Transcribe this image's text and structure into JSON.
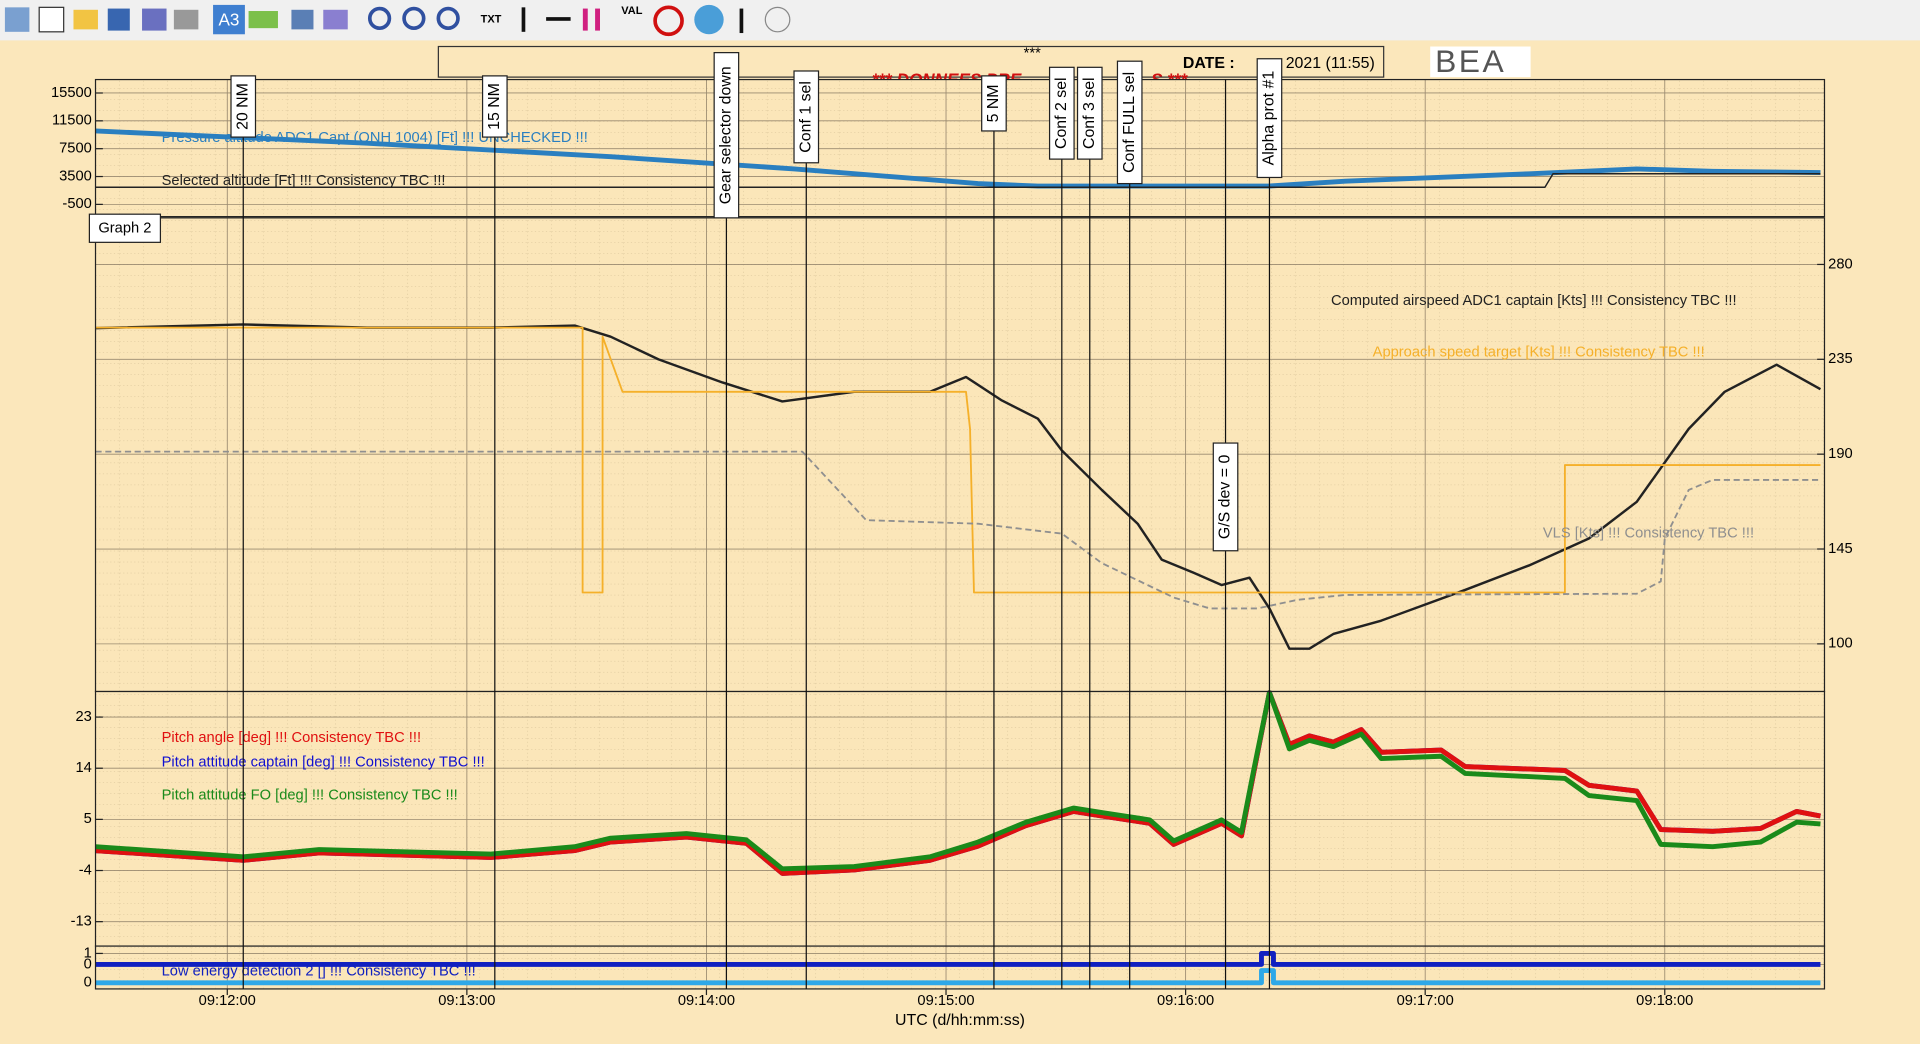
{
  "toolbar": {
    "labels": [
      "A3",
      "TXT",
      "VAL"
    ]
  },
  "header": {
    "stars": "***",
    "date_label": "DATE :",
    "date": "2021 (11:55)",
    "banner_left": "*** DONNEES PRE",
    "banner_right": "S ***",
    "logo": "BEA",
    "graph_label": "Graph 2"
  },
  "chart_data": [
    {
      "type": "line",
      "ylim": [
        -2260,
        17430
      ],
      "yticks": [
        15500,
        11500,
        7500,
        3500,
        -500
      ],
      "grid": true,
      "series": [
        {
          "name": "Pressure altitude ADC1 Capt (QNH 1004) [Ft] !!! UNCHECKED !!!",
          "color": "#2a7fc0",
          "x": [
            33087,
            33155,
            33216,
            33262,
            33308,
            33323,
            33369,
            33381,
            33400,
            33446,
            33473,
            33492,
            33519
          ],
          "values": [
            10050,
            8292,
            6358,
            4600,
            2491,
            2140,
            2140,
            2140,
            2842,
            3897,
            4600,
            4249,
            4073
          ]
        },
        {
          "name": "Selected altitude [Ft] !!! Consistency TBC !!!",
          "color": "#222222",
          "x": [
            33087,
            33450,
            33452,
            33519
          ],
          "values": [
            1964,
            1964,
            3897,
            3897
          ]
        }
      ]
    },
    {
      "type": "line",
      "ylim": [
        77.4,
        302.1
      ],
      "yticks": [
        280,
        235,
        190,
        145,
        100
      ],
      "grid": true,
      "yaxis_side": "right",
      "series": [
        {
          "name": "Computed airspeed ADC1 captain [Kts] !!! Consistency TBC !!!",
          "color": "#222222",
          "x": [
            33087,
            33124,
            33155,
            33186,
            33207,
            33216,
            33228,
            33244,
            33259,
            33277,
            33296,
            33305,
            33314,
            33323,
            33329,
            33339,
            33348,
            33354,
            33362,
            33369,
            33376,
            33381,
            33386,
            33391,
            33397,
            33409,
            33430,
            33446,
            33461,
            33473,
            33486,
            33495,
            33508,
            33519
          ],
          "values": [
            249.8,
            251.5,
            250,
            250,
            251,
            245.7,
            235,
            224,
            215,
            219.6,
            219.6,
            226.6,
            215.5,
            206.8,
            191.7,
            173,
            157,
            140,
            133.7,
            127.9,
            131.4,
            116.8,
            97.7,
            97.7,
            104.7,
            111,
            125.6,
            137.2,
            150,
            167.4,
            202,
            219.6,
            232.4,
            220.8
          ]
        },
        {
          "name": "Approach speed target [Kts] !!! Consistency TBC !!!",
          "color": "#f5b02a",
          "x": [
            33087,
            33209,
            33209,
            33214,
            33214,
            33219,
            33305,
            33306,
            33307,
            33455,
            33455,
            33519
          ],
          "values": [
            250,
            250,
            124.4,
            124.4,
            245.7,
            219.6,
            219.6,
            202,
            124.4,
            124.4,
            184.8,
            184.8
          ]
        },
        {
          "name": "VLS [Kts] !!! Consistency TBC !!!",
          "color": "#8f8f8f",
          "dashed": true,
          "x": [
            33087,
            33264,
            33280,
            33308,
            33329,
            33339,
            33357,
            33366,
            33378,
            33388,
            33400,
            33473,
            33479,
            33480,
            33486,
            33492,
            33519
          ],
          "values": [
            191.2,
            191.2,
            158.7,
            157,
            152.3,
            138.3,
            122,
            116.8,
            116.8,
            120.9,
            123.2,
            123.8,
            129.6,
            150,
            173,
            177.8,
            177.8
          ]
        }
      ]
    },
    {
      "type": "line",
      "ylim": [
        -17.3,
        27.5
      ],
      "yticks": [
        23,
        14,
        5,
        -4,
        -13
      ],
      "grid": true,
      "x": [
        33087,
        33124,
        33143,
        33186,
        33207,
        33216,
        33235,
        33250,
        33259,
        33277,
        33296,
        33308,
        33320,
        33332,
        33339,
        33351,
        33357,
        33369,
        33374,
        33377,
        33381,
        33386,
        33391,
        33397,
        33404,
        33409,
        33424,
        33430,
        33455,
        33461,
        33473,
        33479,
        33492,
        33504,
        33513,
        33519
      ],
      "series": [
        {
          "name": "Pitch attitude captain [deg] !!! Consistency TBC !!!",
          "color": "#1010d0",
          "values": [
            -0.5,
            -2.2,
            -0.9,
            -1.7,
            -0.5,
            1.0,
            1.9,
            0.8,
            -4.5,
            -3.9,
            -2.2,
            0.3,
            3.9,
            6.4,
            5.6,
            4.3,
            0.6,
            4.3,
            2.1,
            13.0,
            27.3,
            18.2,
            19.7,
            18.6,
            20.8,
            16.8,
            17.2,
            14.3,
            13.6,
            11.0,
            10.0,
            3.2,
            2.9,
            3.4,
            6.4,
            5.6
          ]
        },
        {
          "name": "Pitch angle [deg] !!! Consistency TBC !!!",
          "color": "#e01010",
          "values": [
            -0.5,
            -2.2,
            -0.9,
            -1.7,
            -0.5,
            1.0,
            1.9,
            0.8,
            -4.5,
            -3.9,
            -2.2,
            0.3,
            3.9,
            6.4,
            5.6,
            4.3,
            0.6,
            4.3,
            2.1,
            13.0,
            27.3,
            18.2,
            19.7,
            18.6,
            20.8,
            16.8,
            17.2,
            14.3,
            13.6,
            11.0,
            10.0,
            3.2,
            2.9,
            3.4,
            6.4,
            5.6
          ]
        },
        {
          "name": "Pitch attitude FO [deg] !!! Consistency TBC !!!",
          "color": "#1a8a1a",
          "values": [
            0.2,
            -1.6,
            -0.3,
            -1.1,
            0.2,
            1.7,
            2.5,
            1.4,
            -3.7,
            -3.3,
            -1.6,
            1.0,
            4.5,
            7.0,
            6.2,
            4.9,
            1.2,
            4.9,
            2.7,
            13.5,
            27.3,
            17.4,
            18.9,
            17.8,
            20.0,
            15.7,
            16.1,
            13.1,
            12.2,
            9.2,
            8.3,
            0.6,
            0.2,
            1.0,
            4.5,
            4.2
          ]
        }
      ]
    },
    {
      "type": "line",
      "ylim": [
        -2.22,
        1.667
      ],
      "yticks": [
        1,
        0
      ],
      "y2lim": [
        -0.5,
        3
      ],
      "y2ticks": [
        0
      ],
      "grid": true,
      "xlim": [
        33087,
        33520
      ],
      "xticks": [
        {
          "value": 33120,
          "label": "09:12:00"
        },
        {
          "value": 33180,
          "label": "09:13:00"
        },
        {
          "value": 33240,
          "label": "09:14:00"
        },
        {
          "value": 33300,
          "label": "09:15:00"
        },
        {
          "value": 33360,
          "label": "09:16:00"
        },
        {
          "value": 33420,
          "label": "09:17:00"
        },
        {
          "value": 33480,
          "label": "09:18:00"
        }
      ],
      "x_label": "UTC (d/hh:mm:ss)",
      "x": [
        33087,
        33379,
        33379,
        33382,
        33382,
        33519
      ],
      "series": [
        {
          "name": "Low energy detection 2 [] !!! Consistency TBC !!!",
          "color": "#1020c0",
          "values": [
            0,
            0,
            1,
            1,
            0,
            0
          ]
        },
        {
          "color": "#2ea8e8",
          "axis": "y2",
          "values": [
            0,
            0,
            1,
            1,
            0,
            0
          ]
        }
      ],
      "events": [
        {
          "label": "20 NM",
          "x": 33124
        },
        {
          "label": "15 NM",
          "x": 33187
        },
        {
          "label": "Gear selector down",
          "x": 33245
        },
        {
          "label": "Conf 1 sel",
          "x": 33265
        },
        {
          "label": "5 NM",
          "x": 33312
        },
        {
          "label": "Conf 2 sel",
          "x": 33329
        },
        {
          "label": "Conf 3 sel",
          "x": 33336
        },
        {
          "label": "Conf FULL sel",
          "x": 33346
        },
        {
          "label": "G/S dev = 0",
          "x": 33370
        },
        {
          "label": "Alpha prot #1",
          "x": 33381
        }
      ]
    }
  ]
}
